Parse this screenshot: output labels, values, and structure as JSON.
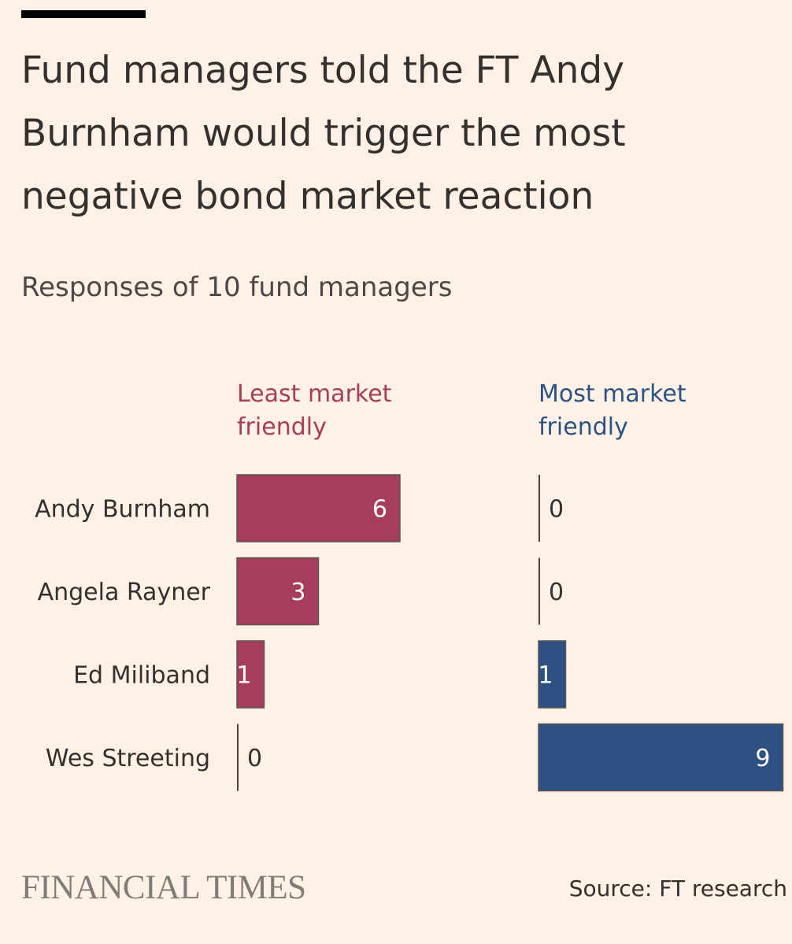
{
  "header": {
    "title": "Fund managers told the FT Andy Burnham would trigger the most negative bond market reaction",
    "subtitle": "Responses of 10 fund managers"
  },
  "footer": {
    "logo": "FINANCIAL TIMES",
    "source": "Source: FT research"
  },
  "colors": {
    "least": "#a63d5a",
    "most": "#2d5183",
    "background": "#fff1e5",
    "text": "#33302e"
  },
  "chart_data": {
    "type": "bar",
    "orientation": "horizontal",
    "categories": [
      "Andy Burnham",
      "Angela Rayner",
      "Ed Miliband",
      "Wes Streeting"
    ],
    "series": [
      {
        "name": "Least market friendly",
        "values": [
          6,
          3,
          1,
          0
        ],
        "color": "#a63d5a"
      },
      {
        "name": "Most market friendly",
        "values": [
          0,
          0,
          1,
          9
        ],
        "color": "#2d5183"
      }
    ],
    "title": "Fund managers told the FT Andy Burnham would trigger the most negative bond market reaction",
    "subtitle": "Responses of 10 fund managers",
    "xlim": [
      0,
      9
    ],
    "grid": false,
    "legend": "column-headers"
  }
}
